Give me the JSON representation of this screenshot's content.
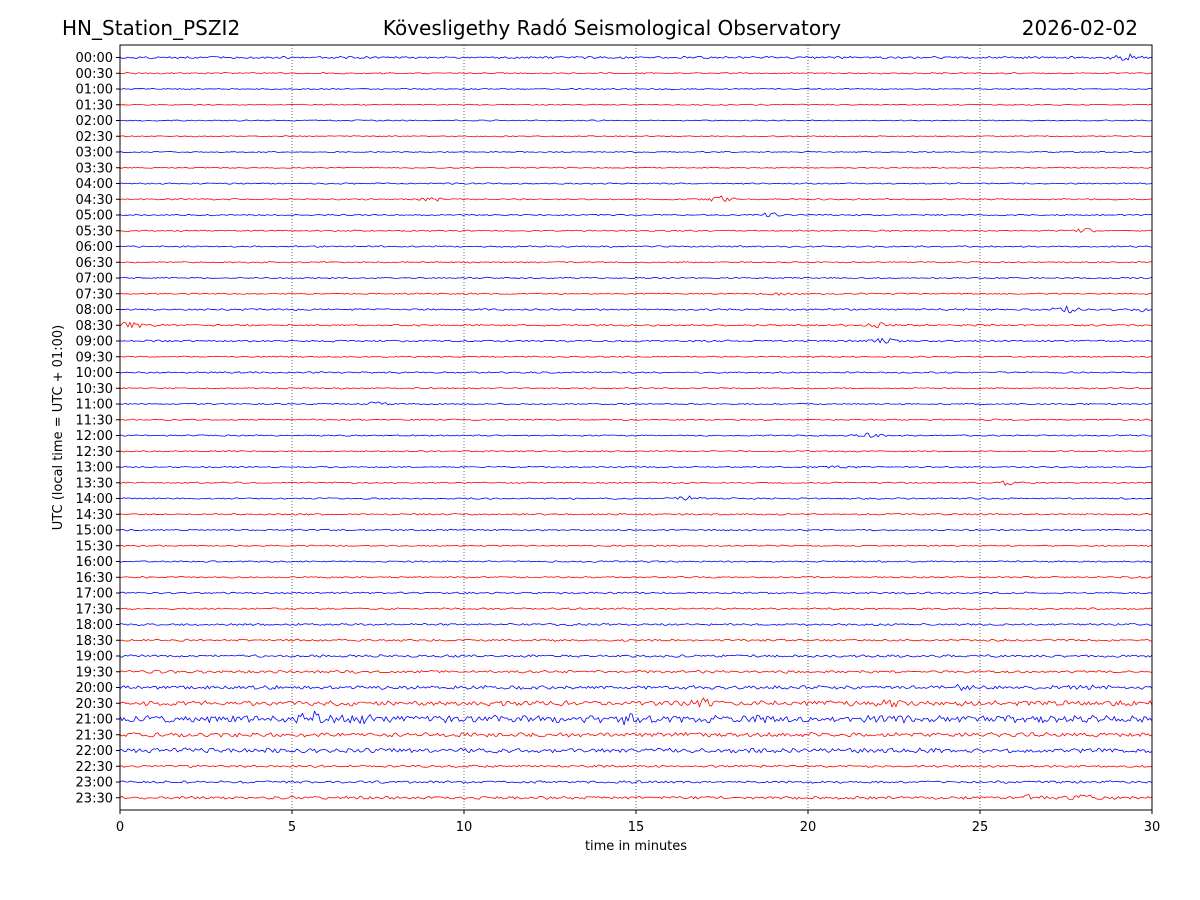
{
  "header": {
    "station": "HN_Station_PSZI2",
    "observatory": "Kövesligethy Radó Seismological Observatory",
    "date": "2026-02-02"
  },
  "chart_data": {
    "type": "line",
    "title": "Kövesligethy Radó Seismological Observatory",
    "xlabel": "time in minutes",
    "ylabel": "UTC (local time = UTC + 01:00)",
    "xlim": [
      0,
      30
    ],
    "xticks": [
      0,
      5,
      10,
      15,
      20,
      25,
      30
    ],
    "grid": "vertical dotted at 5-minute ticks",
    "legend": "none",
    "colors": {
      "even_rows": "#0000ff",
      "odd_rows": "#ff0000"
    },
    "rows": [
      "00:00",
      "00:30",
      "01:00",
      "01:30",
      "02:00",
      "02:30",
      "03:00",
      "03:30",
      "04:00",
      "04:30",
      "05:00",
      "05:30",
      "06:00",
      "06:30",
      "07:00",
      "07:30",
      "08:00",
      "08:30",
      "09:00",
      "09:30",
      "10:00",
      "10:30",
      "11:00",
      "11:30",
      "12:00",
      "12:30",
      "13:00",
      "13:30",
      "14:00",
      "14:30",
      "15:00",
      "15:30",
      "16:00",
      "16:30",
      "17:00",
      "17:30",
      "18:00",
      "18:30",
      "19:00",
      "19:30",
      "20:00",
      "20:30",
      "21:00",
      "21:30",
      "22:00",
      "22:30",
      "23:00",
      "23:30"
    ],
    "noise_level": [
      1.0,
      0.6,
      0.5,
      0.5,
      0.5,
      0.5,
      0.5,
      0.5,
      0.6,
      0.6,
      0.6,
      0.6,
      0.7,
      0.6,
      0.6,
      0.6,
      0.8,
      0.8,
      0.8,
      0.6,
      0.7,
      0.6,
      0.6,
      0.6,
      0.6,
      0.6,
      0.6,
      0.6,
      0.7,
      0.7,
      0.7,
      0.6,
      0.7,
      0.7,
      0.8,
      0.8,
      0.9,
      0.9,
      1.1,
      1.2,
      1.6,
      2.2,
      3.2,
      1.9,
      2.0,
      1.0,
      1.1,
      1.3
    ],
    "bursts": [
      {
        "row": "00:00",
        "minute": 29.2,
        "amplitude": 3.0
      },
      {
        "row": "04:30",
        "minute": 17.5,
        "amplitude": 2.5
      },
      {
        "row": "04:30",
        "minute": 9.0,
        "amplitude": 1.8
      },
      {
        "row": "05:00",
        "minute": 18.8,
        "amplitude": 2.0
      },
      {
        "row": "05:30",
        "minute": 28.0,
        "amplitude": 1.8
      },
      {
        "row": "07:30",
        "minute": 19.2,
        "amplitude": 1.5
      },
      {
        "row": "08:00",
        "minute": 27.5,
        "amplitude": 2.5
      },
      {
        "row": "08:00",
        "minute": 29.8,
        "amplitude": 2.0
      },
      {
        "row": "08:30",
        "minute": 0.3,
        "amplitude": 3.0
      },
      {
        "row": "08:30",
        "minute": 22.0,
        "amplitude": 2.0
      },
      {
        "row": "09:00",
        "minute": 22.2,
        "amplitude": 2.5
      },
      {
        "row": "11:00",
        "minute": 7.5,
        "amplitude": 1.8
      },
      {
        "row": "12:00",
        "minute": 21.8,
        "amplitude": 1.8
      },
      {
        "row": "13:00",
        "minute": 21.0,
        "amplitude": 1.5
      },
      {
        "row": "13:30",
        "minute": 25.8,
        "amplitude": 2.5
      },
      {
        "row": "14:00",
        "minute": 16.6,
        "amplitude": 1.8
      },
      {
        "row": "20:00",
        "minute": 24.5,
        "amplitude": 2.0
      },
      {
        "row": "20:00",
        "minute": 28.0,
        "amplitude": 1.8
      },
      {
        "row": "20:30",
        "minute": 17.1,
        "amplitude": 3.0
      },
      {
        "row": "20:30",
        "minute": 22.3,
        "amplitude": 2.5
      },
      {
        "row": "21:00",
        "minute": 5.5,
        "amplitude": 4.0
      },
      {
        "row": "21:00",
        "minute": 7.1,
        "amplitude": 3.5
      },
      {
        "row": "21:00",
        "minute": 14.8,
        "amplitude": 3.0
      },
      {
        "row": "23:30",
        "minute": 26.5,
        "amplitude": 2.5
      },
      {
        "row": "23:30",
        "minute": 28.0,
        "amplitude": 2.0
      }
    ]
  }
}
